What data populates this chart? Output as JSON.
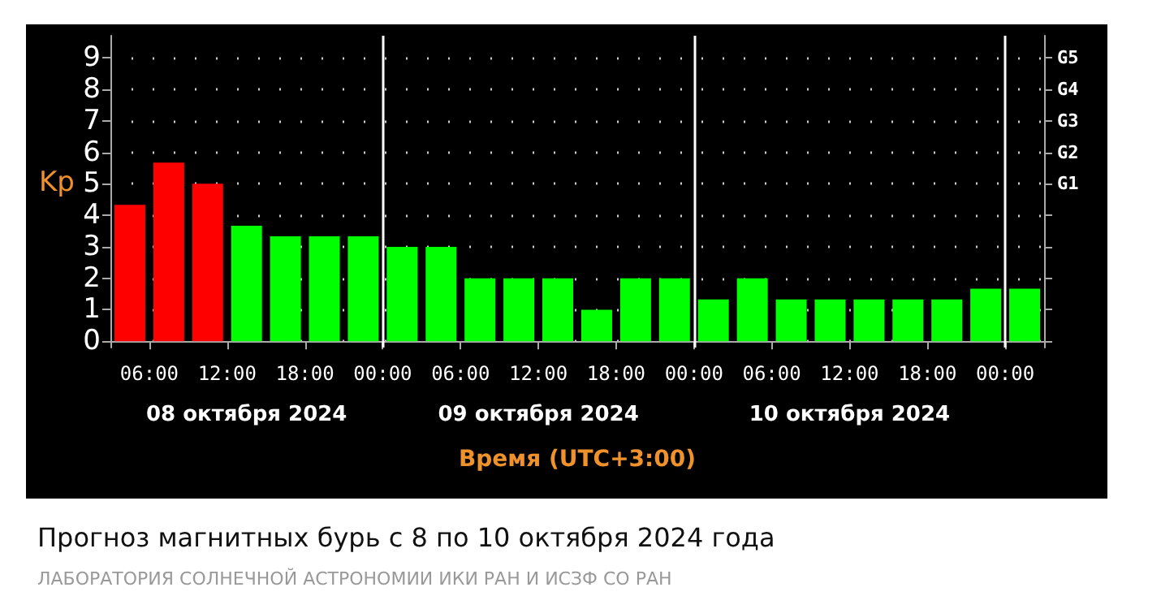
{
  "chart_data": {
    "type": "bar",
    "title": "Прогноз магнитных бурь с 8 по 10 октября 2024 года",
    "subtitle": "ЛАБОРАТОРИЯ СОЛНЕЧНОЙ АСТРОНОМИИ ИКИ РАН И ИСЗФ СО РАН",
    "xlabel": "Время (UTC+3:00)",
    "ylabel": "Kp",
    "x": [
      "2024-10-08T04:30",
      "2024-10-08T07:30",
      "2024-10-08T10:30",
      "2024-10-08T13:30",
      "2024-10-08T16:30",
      "2024-10-08T19:30",
      "2024-10-08T22:30",
      "2024-10-09T01:30",
      "2024-10-09T04:30",
      "2024-10-09T07:30",
      "2024-10-09T10:30",
      "2024-10-09T13:30",
      "2024-10-09T16:30",
      "2024-10-09T19:30",
      "2024-10-09T22:30",
      "2024-10-10T01:30",
      "2024-10-10T04:30",
      "2024-10-10T07:30",
      "2024-10-10T10:30",
      "2024-10-10T13:30",
      "2024-10-10T16:30",
      "2024-10-10T19:30",
      "2024-10-10T22:30",
      "2024-10-11T01:30"
    ],
    "values": [
      4.33,
      5.67,
      5,
      3.67,
      3.33,
      3.33,
      3.33,
      3,
      3,
      2,
      2,
      2,
      1,
      2,
      2,
      1.33,
      2,
      1.33,
      1.33,
      1.33,
      1.33,
      1.33,
      1.67,
      1.67
    ],
    "colors": [
      "#ff0000",
      "#ff0000",
      "#ff0000",
      "#00ff00",
      "#00ff00",
      "#00ff00",
      "#00ff00",
      "#00ff00",
      "#00ff00",
      "#00ff00",
      "#00ff00",
      "#00ff00",
      "#00ff00",
      "#00ff00",
      "#00ff00",
      "#00ff00",
      "#00ff00",
      "#00ff00",
      "#00ff00",
      "#00ff00",
      "#00ff00",
      "#00ff00",
      "#00ff00",
      "#00ff00"
    ],
    "xlim": [
      "2024-10-08T03:00",
      "2024-10-11T03:00"
    ],
    "xticks": [
      {
        "value": "2024-10-08T06:00",
        "label": "06:00"
      },
      {
        "value": "2024-10-08T12:00",
        "label": "12:00"
      },
      {
        "value": "2024-10-08T18:00",
        "label": "18:00"
      },
      {
        "value": "2024-10-09T00:00",
        "label": "00:00"
      },
      {
        "value": "2024-10-09T06:00",
        "label": "06:00"
      },
      {
        "value": "2024-10-09T12:00",
        "label": "12:00"
      },
      {
        "value": "2024-10-09T18:00",
        "label": "18:00"
      },
      {
        "value": "2024-10-10T00:00",
        "label": "00:00"
      },
      {
        "value": "2024-10-10T06:00",
        "label": "06:00"
      },
      {
        "value": "2024-10-10T12:00",
        "label": "12:00"
      },
      {
        "value": "2024-10-10T18:00",
        "label": "18:00"
      },
      {
        "value": "2024-10-11T00:00",
        "label": "00:00"
      }
    ],
    "ylim": [
      -0.2,
      9.7
    ],
    "yticks": [
      0,
      1,
      2,
      3,
      4,
      5,
      6,
      7,
      8,
      9
    ],
    "y2_categories": [
      "G5",
      "G4",
      "G3",
      "G2",
      "G1",
      null,
      null,
      null,
      null,
      null
    ],
    "ref_lines": [
      {
        "axis": "x",
        "value": "2024-10-09T00:00",
        "color": "#ffffff"
      },
      {
        "axis": "x",
        "value": "2024-10-10T00:00",
        "color": "#ffffff"
      },
      {
        "axis": "x",
        "value": "2024-10-11T00:00",
        "color": "#ffffff"
      }
    ],
    "annotations": [
      "08 октября 2024",
      "09 октября 2024",
      "10 октября 2024"
    ],
    "grid": "y"
  }
}
